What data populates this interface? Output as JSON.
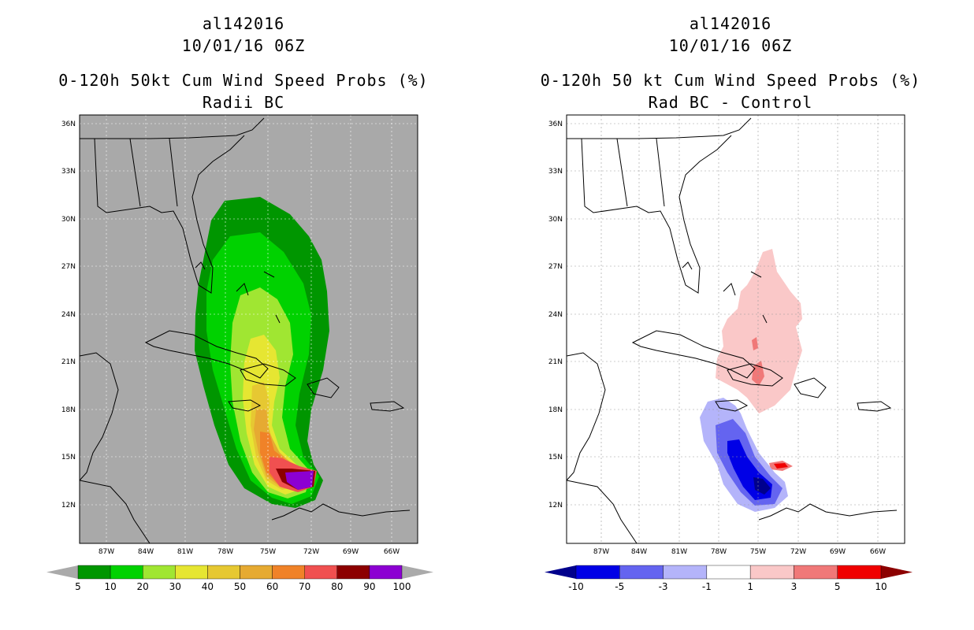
{
  "left": {
    "storm_id": "al142016",
    "datetime": "10/01/16 06Z",
    "product_title": "0-120h 50kt Cum Wind Speed Probs (%)",
    "subtitle": "Radii BC",
    "lat_labels": [
      "36N",
      "33N",
      "30N",
      "27N",
      "24N",
      "21N",
      "18N",
      "15N",
      "12N"
    ],
    "lon_labels": [
      "87W",
      "84W",
      "81W",
      "78W",
      "75W",
      "72W",
      "69W",
      "66W"
    ],
    "colorbar": {
      "labels": [
        "5",
        "10",
        "20",
        "30",
        "40",
        "50",
        "60",
        "70",
        "80",
        "90",
        "100"
      ],
      "colors": [
        "#009600",
        "#00d200",
        "#a0e632",
        "#e6e632",
        "#e6c832",
        "#e6aa32",
        "#f08228",
        "#f05050",
        "#8c0000",
        "#8c00d2"
      ],
      "under_color": "#aaaaaa",
      "over_color": "#aaaaaa"
    },
    "background_color": "#a9a9a9"
  },
  "right": {
    "storm_id": "al142016",
    "datetime": "10/01/16 06Z",
    "product_title": "0-120h 50 kt Cum Wind Speed Probs (%)",
    "subtitle": "Rad BC - Control",
    "lat_labels": [
      "36N",
      "33N",
      "30N",
      "27N",
      "24N",
      "21N",
      "18N",
      "15N",
      "12N"
    ],
    "lon_labels": [
      "87W",
      "84W",
      "81W",
      "78W",
      "75W",
      "72W",
      "69W",
      "66W"
    ],
    "colorbar": {
      "labels": [
        "-10",
        "-5",
        "-3",
        "-1",
        "1",
        "3",
        "5",
        "10"
      ],
      "colors": [
        "#0000e6",
        "#6464f0",
        "#b4b4fa",
        "#ffffff",
        "#fac8c8",
        "#f07878",
        "#f00000"
      ],
      "under_color": "#00008c",
      "over_color": "#8c0000"
    },
    "background_color": "#ffffff"
  }
}
